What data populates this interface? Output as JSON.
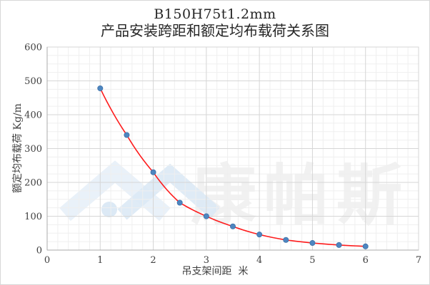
{
  "chart_data": {
    "type": "scatter",
    "title": "B150H75t1.2mm",
    "subtitle": "产品安装跨距和额定均布载荷关系图",
    "xlabel": "吊支架间距  米",
    "ylabel": "额定均布载荷 Kg/m",
    "series": [
      {
        "name": "额定均布载荷",
        "x": [
          1,
          1.5,
          2,
          2.5,
          3,
          3.5,
          4,
          4.5,
          5,
          5.5,
          6
        ],
        "y": [
          478,
          340,
          230,
          140,
          100,
          70,
          46,
          30,
          21,
          15,
          11
        ],
        "marker": "circle",
        "fit_curve": "smooth exponential-type trendline through points"
      }
    ],
    "xlim": [
      0,
      7
    ],
    "ylim": [
      0,
      600
    ],
    "x_tick_step": 1,
    "y_tick_step": 100,
    "x_minor_step": 0.2,
    "y_minor_step": 25,
    "grid": "major and minor, both axes",
    "legend": "none",
    "x_ticks": [
      0,
      1,
      2,
      3,
      4,
      5,
      6,
      7
    ],
    "y_ticks": [
      0,
      100,
      200,
      300,
      400,
      500,
      600
    ]
  },
  "watermark": {
    "text": "康帕斯",
    "logo": "mountain-chevrons-with-dot"
  },
  "colors": {
    "marker_fill": "#4e86c0",
    "marker_edge": "#3c70a8",
    "curve": "#fe1b1c",
    "grid_major": "#d6d6d6",
    "grid_minor": "#efefef",
    "axis_line": "#ababab",
    "text": "#3f3f3f",
    "title_text": "#262626",
    "watermark_text": "#f1f1f1",
    "logo_light": "#e9f1f9",
    "logo_mid": "#dce9f5",
    "frame_border": "#d8d8d8"
  }
}
